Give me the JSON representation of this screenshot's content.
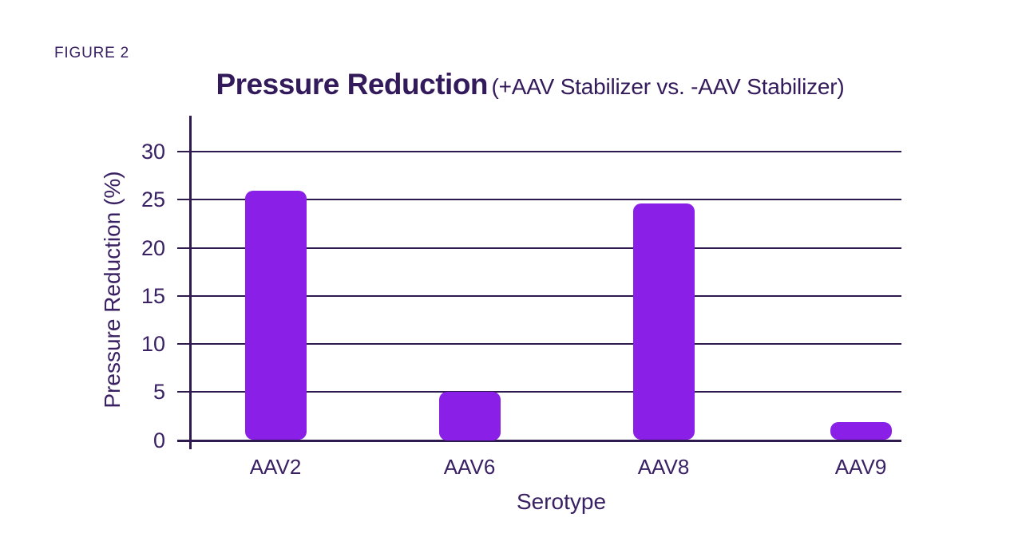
{
  "figure_label": "FIGURE 2",
  "title": {
    "main": "Pressure Reduction",
    "paren": "(+AAV Stabilizer vs. -AAV Stabilizer)"
  },
  "chart_data": {
    "type": "bar",
    "title": "Pressure Reduction (+AAV Stabilizer vs. -AAV Stabilizer)",
    "categories": [
      "AAV2",
      "AAV6",
      "AAV8",
      "AAV9"
    ],
    "values": [
      25.9,
      5.0,
      24.6,
      1.9
    ],
    "xlabel": "Serotype",
    "ylabel": "Pressure Reduction (%)",
    "ylim": [
      0,
      30
    ],
    "yticks": [
      0,
      5,
      10,
      15,
      20,
      25,
      30
    ],
    "grid": true,
    "legend_position": "none",
    "bar_color": "#8a1fe8",
    "axis_color": "#2e1a4e",
    "text_color": "#3a2163"
  }
}
